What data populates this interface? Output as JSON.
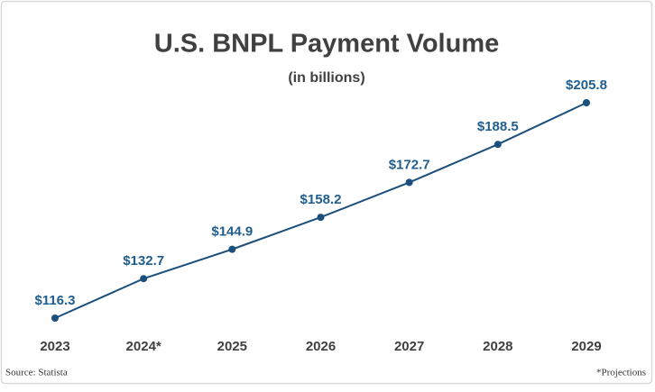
{
  "chart_data": {
    "type": "line",
    "title": "U.S. BNPL Payment Volume",
    "subtitle": "(in billions)",
    "categories": [
      "2023",
      "2024*",
      "2025",
      "2026",
      "2027",
      "2028",
      "2029"
    ],
    "values": [
      116.3,
      132.7,
      144.9,
      158.2,
      172.7,
      188.5,
      205.8
    ],
    "value_labels": [
      "$116.3",
      "$132.7",
      "$144.9",
      "$158.2",
      "$172.7",
      "$188.5",
      "$205.8"
    ],
    "color": "#1b4f7c",
    "source": "Source: Statista",
    "note": "*Projections"
  }
}
